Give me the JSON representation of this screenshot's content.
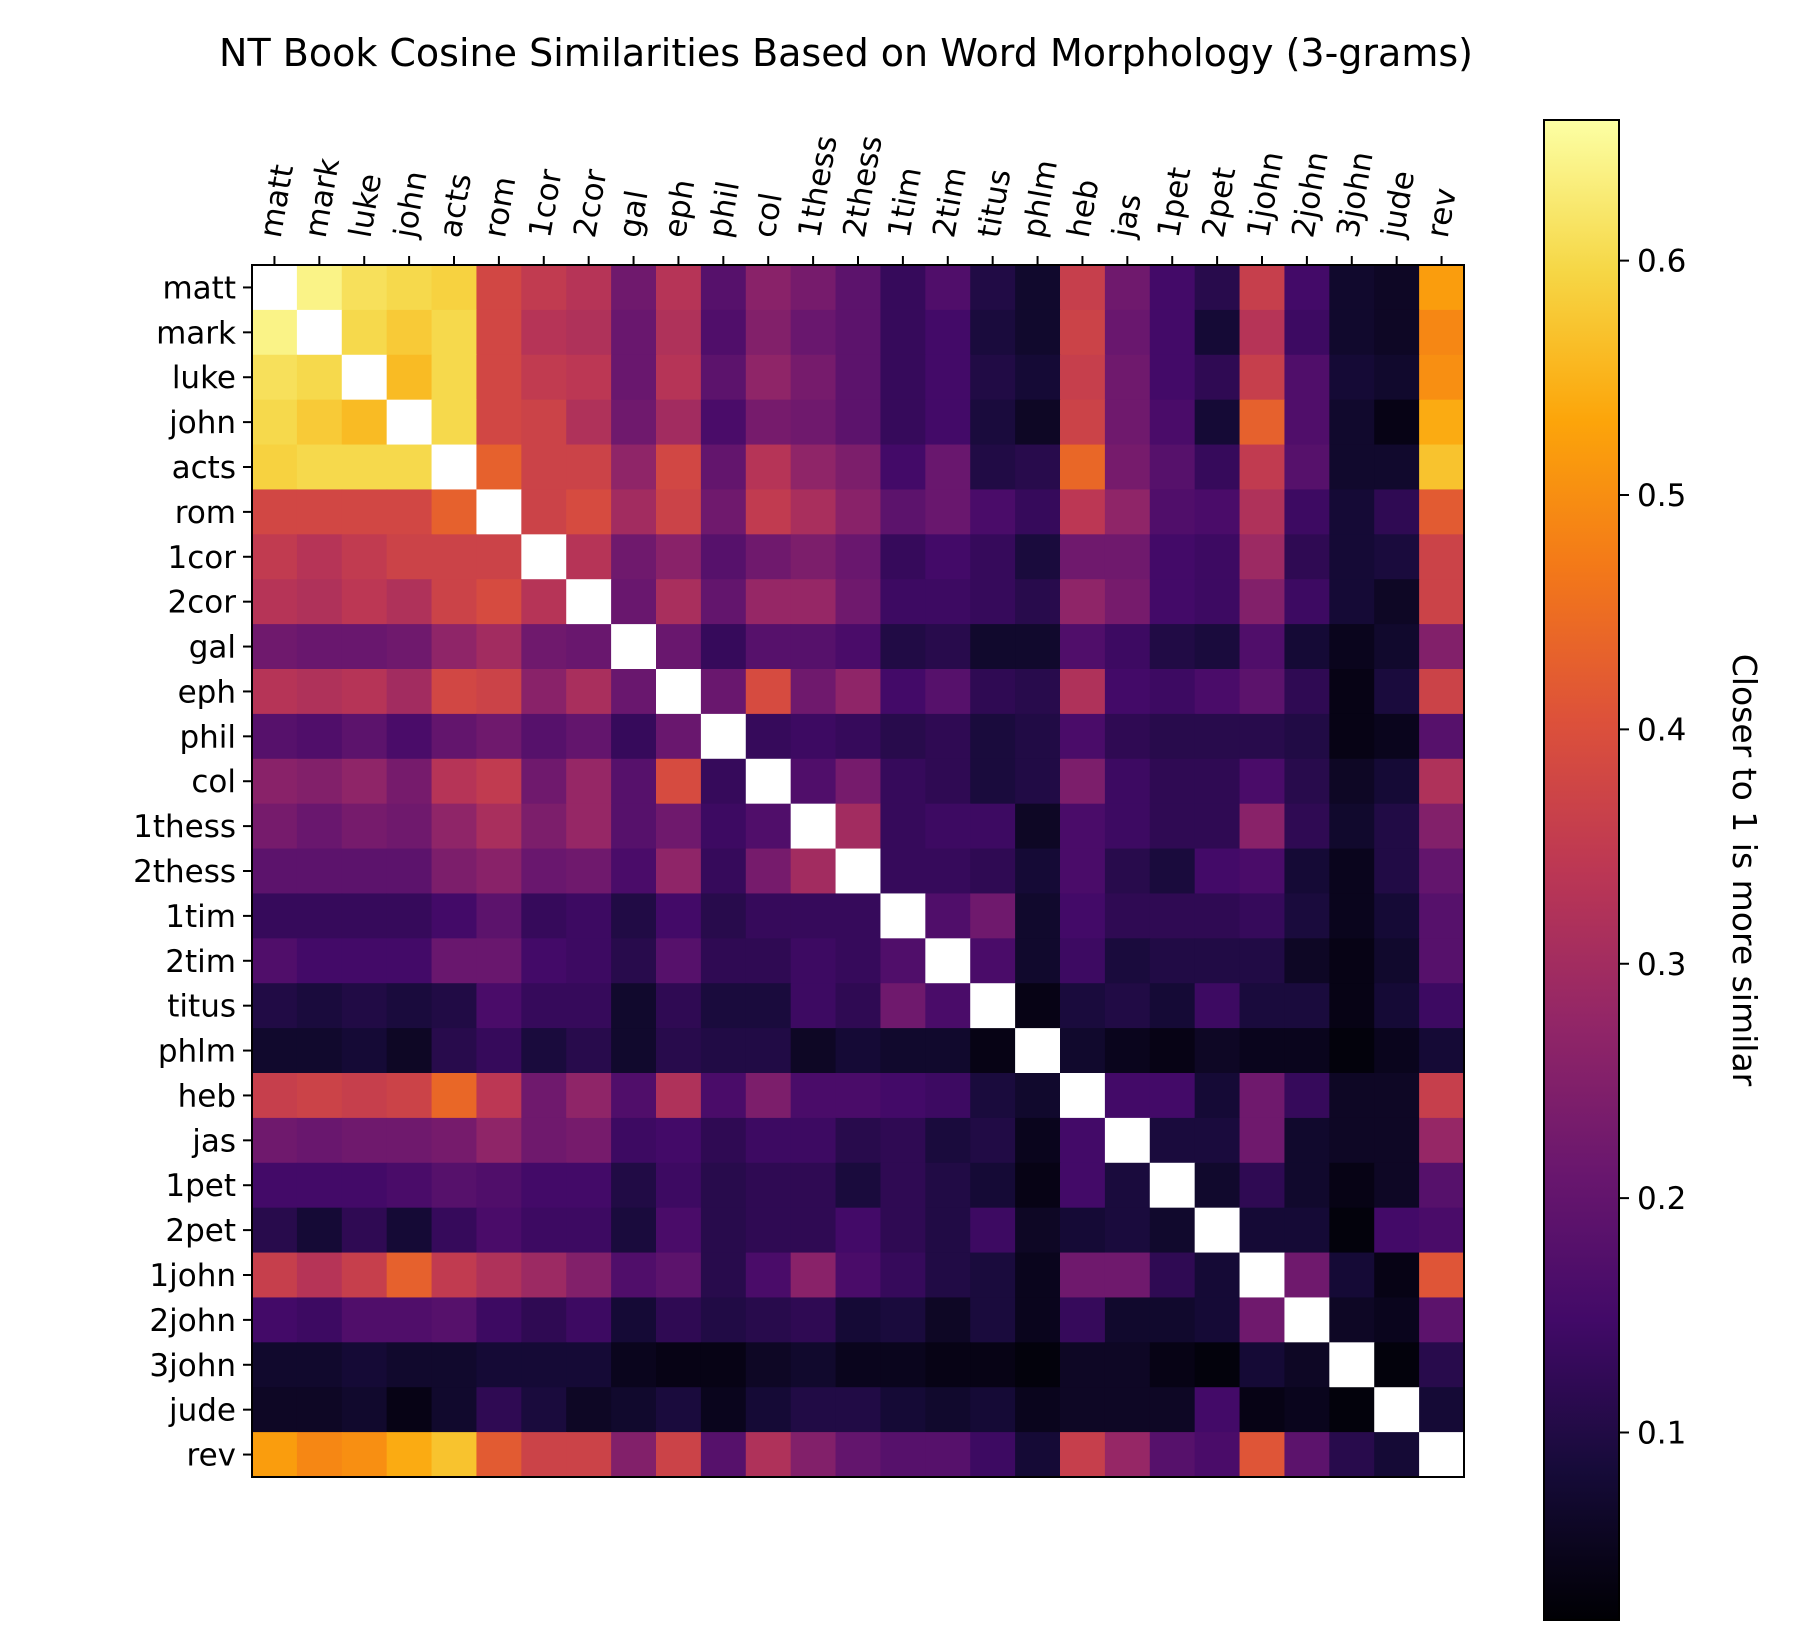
{
  "chart_data": {
    "type": "heatmap",
    "title": "NT Book Cosine Similarities Based on Word Morphology (3-grams)",
    "colorbar_label": "Closer to 1 is more similar",
    "colormap": "inferno",
    "diagonal_color": "#ffffff",
    "x_categories": [
      "matt",
      "mark",
      "luke",
      "john",
      "acts",
      "rom",
      "1cor",
      "2cor",
      "gal",
      "eph",
      "phil",
      "col",
      "1thess",
      "2thess",
      "1tim",
      "2tim",
      "titus",
      "phlm",
      "heb",
      "jas",
      "1pet",
      "2pet",
      "1john",
      "2john",
      "3john",
      "jude",
      "rev"
    ],
    "y_categories": [
      "matt",
      "mark",
      "luke",
      "john",
      "acts",
      "rom",
      "1cor",
      "2cor",
      "gal",
      "eph",
      "phil",
      "col",
      "1thess",
      "2thess",
      "1tim",
      "2tim",
      "titus",
      "phlm",
      "heb",
      "jas",
      "1pet",
      "2pet",
      "1john",
      "2john",
      "3john",
      "jude",
      "rev"
    ],
    "x_tick_position": "top",
    "x_tick_rotation": "rotated",
    "color_range": [
      0.02,
      0.66
    ],
    "colorbar_ticks": [
      0.1,
      0.2,
      0.3,
      0.4,
      0.5,
      0.6
    ],
    "values": [
      [
        1.0,
        0.64,
        0.61,
        0.6,
        0.59,
        0.38,
        0.35,
        0.33,
        0.22,
        0.33,
        0.18,
        0.26,
        0.23,
        0.19,
        0.13,
        0.17,
        0.1,
        0.07,
        0.36,
        0.22,
        0.15,
        0.11,
        0.36,
        0.15,
        0.07,
        0.06,
        0.52
      ],
      [
        0.64,
        1.0,
        0.6,
        0.58,
        0.6,
        0.38,
        0.33,
        0.32,
        0.21,
        0.32,
        0.17,
        0.25,
        0.21,
        0.19,
        0.13,
        0.15,
        0.09,
        0.07,
        0.37,
        0.21,
        0.15,
        0.08,
        0.33,
        0.14,
        0.07,
        0.06,
        0.49
      ],
      [
        0.61,
        0.6,
        1.0,
        0.56,
        0.6,
        0.38,
        0.35,
        0.34,
        0.21,
        0.33,
        0.19,
        0.27,
        0.23,
        0.19,
        0.13,
        0.15,
        0.1,
        0.08,
        0.36,
        0.22,
        0.15,
        0.12,
        0.36,
        0.17,
        0.08,
        0.07,
        0.5
      ],
      [
        0.6,
        0.58,
        0.56,
        1.0,
        0.6,
        0.38,
        0.37,
        0.32,
        0.22,
        0.3,
        0.16,
        0.23,
        0.22,
        0.19,
        0.13,
        0.15,
        0.09,
        0.06,
        0.37,
        0.22,
        0.16,
        0.08,
        0.43,
        0.17,
        0.07,
        0.04,
        0.54
      ],
      [
        0.59,
        0.6,
        0.6,
        0.6,
        1.0,
        0.43,
        0.37,
        0.37,
        0.27,
        0.38,
        0.2,
        0.33,
        0.27,
        0.24,
        0.15,
        0.21,
        0.1,
        0.11,
        0.44,
        0.23,
        0.18,
        0.13,
        0.35,
        0.18,
        0.07,
        0.07,
        0.57
      ],
      [
        0.38,
        0.38,
        0.38,
        0.38,
        0.43,
        1.0,
        0.37,
        0.39,
        0.3,
        0.37,
        0.22,
        0.35,
        0.31,
        0.26,
        0.19,
        0.21,
        0.16,
        0.13,
        0.34,
        0.27,
        0.17,
        0.16,
        0.32,
        0.14,
        0.08,
        0.12,
        0.42
      ],
      [
        0.35,
        0.33,
        0.35,
        0.37,
        0.37,
        0.37,
        1.0,
        0.33,
        0.22,
        0.26,
        0.18,
        0.22,
        0.24,
        0.21,
        0.13,
        0.15,
        0.13,
        0.09,
        0.22,
        0.22,
        0.15,
        0.14,
        0.29,
        0.12,
        0.08,
        0.09,
        0.37
      ],
      [
        0.33,
        0.32,
        0.34,
        0.32,
        0.37,
        0.39,
        0.33,
        1.0,
        0.21,
        0.31,
        0.2,
        0.28,
        0.28,
        0.22,
        0.14,
        0.14,
        0.13,
        0.11,
        0.27,
        0.23,
        0.15,
        0.14,
        0.25,
        0.14,
        0.08,
        0.06,
        0.37
      ],
      [
        0.22,
        0.21,
        0.21,
        0.22,
        0.27,
        0.3,
        0.22,
        0.21,
        1.0,
        0.21,
        0.13,
        0.18,
        0.18,
        0.16,
        0.1,
        0.11,
        0.07,
        0.07,
        0.17,
        0.14,
        0.1,
        0.09,
        0.17,
        0.08,
        0.05,
        0.07,
        0.25
      ],
      [
        0.33,
        0.32,
        0.33,
        0.3,
        0.38,
        0.37,
        0.26,
        0.31,
        0.21,
        1.0,
        0.21,
        0.39,
        0.22,
        0.27,
        0.15,
        0.18,
        0.12,
        0.11,
        0.32,
        0.15,
        0.14,
        0.16,
        0.19,
        0.12,
        0.04,
        0.09,
        0.37
      ],
      [
        0.18,
        0.17,
        0.19,
        0.16,
        0.2,
        0.22,
        0.18,
        0.2,
        0.13,
        0.21,
        1.0,
        0.13,
        0.14,
        0.13,
        0.11,
        0.12,
        0.09,
        0.1,
        0.16,
        0.12,
        0.11,
        0.11,
        0.11,
        0.1,
        0.04,
        0.05,
        0.18
      ],
      [
        0.26,
        0.25,
        0.27,
        0.23,
        0.33,
        0.35,
        0.22,
        0.28,
        0.18,
        0.39,
        0.13,
        1.0,
        0.17,
        0.23,
        0.13,
        0.12,
        0.09,
        0.1,
        0.24,
        0.14,
        0.12,
        0.12,
        0.16,
        0.11,
        0.06,
        0.08,
        0.32
      ],
      [
        0.23,
        0.21,
        0.23,
        0.22,
        0.27,
        0.31,
        0.24,
        0.28,
        0.18,
        0.22,
        0.14,
        0.17,
        1.0,
        0.3,
        0.13,
        0.14,
        0.14,
        0.06,
        0.16,
        0.14,
        0.12,
        0.12,
        0.26,
        0.12,
        0.07,
        0.1,
        0.25
      ],
      [
        0.19,
        0.19,
        0.19,
        0.19,
        0.24,
        0.26,
        0.21,
        0.22,
        0.16,
        0.27,
        0.13,
        0.23,
        0.3,
        1.0,
        0.13,
        0.13,
        0.12,
        0.08,
        0.16,
        0.11,
        0.09,
        0.15,
        0.16,
        0.08,
        0.05,
        0.1,
        0.2
      ],
      [
        0.13,
        0.13,
        0.13,
        0.13,
        0.15,
        0.19,
        0.13,
        0.14,
        0.1,
        0.15,
        0.11,
        0.13,
        0.13,
        0.13,
        1.0,
        0.17,
        0.22,
        0.07,
        0.15,
        0.12,
        0.12,
        0.12,
        0.13,
        0.09,
        0.05,
        0.08,
        0.18
      ],
      [
        0.17,
        0.15,
        0.15,
        0.15,
        0.21,
        0.21,
        0.15,
        0.14,
        0.11,
        0.18,
        0.12,
        0.12,
        0.14,
        0.13,
        0.17,
        1.0,
        0.16,
        0.07,
        0.14,
        0.09,
        0.1,
        0.1,
        0.1,
        0.06,
        0.04,
        0.07,
        0.18
      ],
      [
        0.1,
        0.09,
        0.1,
        0.09,
        0.1,
        0.16,
        0.13,
        0.13,
        0.07,
        0.12,
        0.09,
        0.09,
        0.14,
        0.12,
        0.22,
        0.16,
        1.0,
        0.04,
        0.09,
        0.1,
        0.08,
        0.14,
        0.09,
        0.09,
        0.04,
        0.08,
        0.14
      ],
      [
        0.07,
        0.07,
        0.08,
        0.06,
        0.11,
        0.13,
        0.09,
        0.11,
        0.07,
        0.11,
        0.1,
        0.1,
        0.06,
        0.08,
        0.07,
        0.07,
        0.04,
        1.0,
        0.07,
        0.05,
        0.04,
        0.06,
        0.05,
        0.05,
        0.03,
        0.05,
        0.08
      ],
      [
        0.36,
        0.37,
        0.36,
        0.37,
        0.44,
        0.34,
        0.22,
        0.27,
        0.17,
        0.32,
        0.16,
        0.24,
        0.16,
        0.16,
        0.15,
        0.14,
        0.09,
        0.07,
        1.0,
        0.15,
        0.15,
        0.08,
        0.22,
        0.13,
        0.06,
        0.06,
        0.36
      ],
      [
        0.22,
        0.21,
        0.22,
        0.22,
        0.23,
        0.27,
        0.22,
        0.23,
        0.14,
        0.15,
        0.12,
        0.14,
        0.14,
        0.11,
        0.12,
        0.09,
        0.1,
        0.05,
        0.15,
        1.0,
        0.09,
        0.09,
        0.22,
        0.07,
        0.06,
        0.06,
        0.28
      ],
      [
        0.15,
        0.15,
        0.15,
        0.16,
        0.18,
        0.17,
        0.15,
        0.15,
        0.1,
        0.14,
        0.11,
        0.12,
        0.12,
        0.09,
        0.12,
        0.1,
        0.08,
        0.04,
        0.15,
        0.09,
        1.0,
        0.07,
        0.12,
        0.07,
        0.04,
        0.06,
        0.18
      ],
      [
        0.11,
        0.08,
        0.12,
        0.08,
        0.13,
        0.16,
        0.14,
        0.14,
        0.09,
        0.16,
        0.11,
        0.12,
        0.12,
        0.15,
        0.12,
        0.1,
        0.14,
        0.06,
        0.08,
        0.09,
        0.07,
        1.0,
        0.08,
        0.08,
        0.03,
        0.15,
        0.16
      ],
      [
        0.36,
        0.33,
        0.36,
        0.43,
        0.35,
        0.32,
        0.29,
        0.25,
        0.17,
        0.19,
        0.11,
        0.16,
        0.26,
        0.16,
        0.13,
        0.1,
        0.09,
        0.05,
        0.22,
        0.22,
        0.12,
        0.08,
        1.0,
        0.22,
        0.08,
        0.04,
        0.41
      ],
      [
        0.15,
        0.14,
        0.17,
        0.17,
        0.18,
        0.14,
        0.12,
        0.14,
        0.08,
        0.12,
        0.1,
        0.11,
        0.12,
        0.08,
        0.09,
        0.06,
        0.09,
        0.05,
        0.13,
        0.07,
        0.07,
        0.08,
        0.22,
        1.0,
        0.06,
        0.05,
        0.19
      ],
      [
        0.07,
        0.07,
        0.08,
        0.07,
        0.07,
        0.08,
        0.08,
        0.08,
        0.05,
        0.04,
        0.04,
        0.06,
        0.07,
        0.05,
        0.05,
        0.04,
        0.04,
        0.03,
        0.06,
        0.06,
        0.04,
        0.03,
        0.08,
        0.06,
        1.0,
        0.03,
        0.11
      ],
      [
        0.06,
        0.06,
        0.07,
        0.04,
        0.07,
        0.12,
        0.09,
        0.06,
        0.07,
        0.09,
        0.05,
        0.08,
        0.1,
        0.1,
        0.08,
        0.07,
        0.08,
        0.05,
        0.06,
        0.06,
        0.06,
        0.15,
        0.04,
        0.05,
        0.03,
        1.0,
        0.08
      ],
      [
        0.52,
        0.49,
        0.5,
        0.54,
        0.57,
        0.42,
        0.37,
        0.37,
        0.25,
        0.37,
        0.18,
        0.32,
        0.25,
        0.2,
        0.18,
        0.18,
        0.14,
        0.08,
        0.36,
        0.28,
        0.18,
        0.16,
        0.41,
        0.19,
        0.11,
        0.08,
        1.0
      ]
    ]
  }
}
